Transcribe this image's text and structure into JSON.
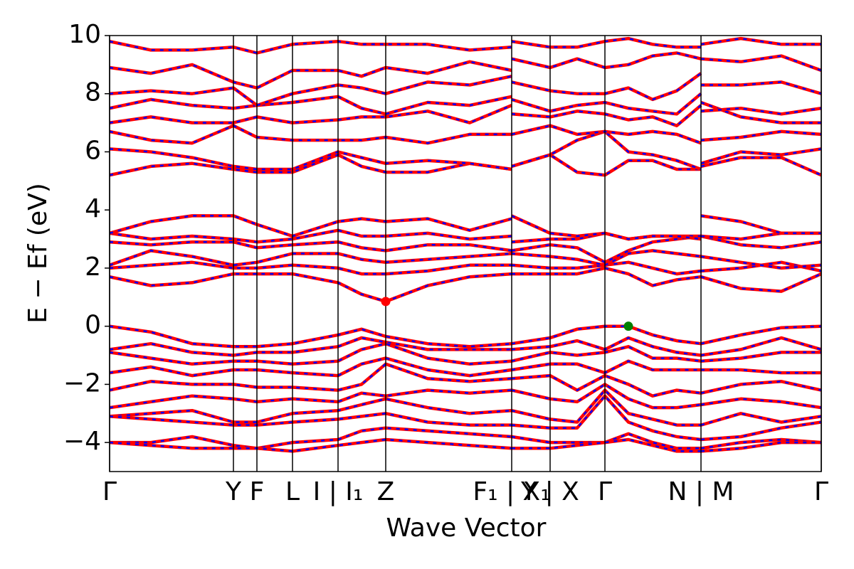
{
  "chart_data": {
    "type": "line",
    "xlabel": "Wave Vector",
    "ylabel": "E − Ef (eV)",
    "xlim": [
      0,
      1000
    ],
    "ylim": [
      -5,
      10
    ],
    "yticks": [
      {
        "value": -4,
        "label": "−4"
      },
      {
        "value": -2,
        "label": "−2"
      },
      0,
      2,
      4,
      6,
      8,
      10
    ],
    "xticks": [
      {
        "value": 0,
        "label": "Γ"
      },
      {
        "value": 174,
        "label": "Y"
      },
      {
        "value": 207,
        "label": "F"
      },
      {
        "value": 257,
        "label": "L"
      },
      {
        "value": 321,
        "label": "I | I₁"
      },
      {
        "value": 388,
        "label": "Z"
      },
      {
        "value": 565,
        "label": "F₁ | X₁"
      },
      {
        "value": 619,
        "label": "Y | X"
      },
      {
        "value": 696,
        "label": "Γ"
      },
      {
        "value": 831,
        "label": "N | M"
      },
      {
        "value": 1000,
        "label": "Γ"
      }
    ],
    "line_color": "#ff0000",
    "dash_color": "#0000ff",
    "tick_line_color": "#000000",
    "x": [
      0,
      58,
      116,
      174,
      207,
      257,
      321,
      354,
      388,
      447,
      506,
      565,
      565,
      565,
      619,
      657,
      696,
      729,
      763,
      797,
      831,
      831,
      831,
      887,
      944,
      1000
    ],
    "series": [
      {
        "values": [
          0,
          -0.2,
          -0.6,
          -0.7,
          -0.7,
          -0.6,
          -0.3,
          -0.1,
          -0.35,
          -0.6,
          -0.7,
          -0.6,
          null,
          -0.6,
          -0.4,
          -0.1,
          0,
          0,
          -0.3,
          -0.5,
          -0.6,
          null,
          -0.6,
          -0.3,
          -0.05,
          0
        ]
      },
      {
        "values": [
          -0.8,
          -0.6,
          -0.9,
          -1.0,
          -0.9,
          -0.9,
          -0.7,
          -0.4,
          -0.55,
          -0.8,
          -0.8,
          -0.8,
          null,
          -0.8,
          -0.7,
          -0.5,
          -0.8,
          -0.4,
          -0.7,
          -0.9,
          -1.0,
          null,
          -1.0,
          -0.8,
          -0.4,
          -0.8
        ]
      },
      {
        "values": [
          -0.9,
          -1.1,
          -1.3,
          -1.2,
          -1.2,
          -1.3,
          -1.2,
          -0.8,
          -0.6,
          -1.1,
          -1.3,
          -1.2,
          null,
          -1.2,
          -0.9,
          -1.0,
          -0.9,
          -0.7,
          -1.1,
          -1.1,
          -1.2,
          null,
          -1.2,
          -1.1,
          -0.9,
          -0.9
        ]
      },
      {
        "values": [
          -1.6,
          -1.4,
          -1.7,
          -1.5,
          -1.5,
          -1.6,
          -1.7,
          -1.3,
          -1.1,
          -1.5,
          -1.7,
          -1.5,
          null,
          -1.5,
          -1.3,
          -1.3,
          -1.6,
          -1.2,
          -1.5,
          -1.5,
          -1.5,
          null,
          -1.5,
          -1.5,
          -1.6,
          -1.6
        ]
      },
      {
        "values": [
          -2.2,
          -1.9,
          -2.0,
          -2.0,
          -2.1,
          -2.1,
          -2.2,
          -2.0,
          -1.3,
          -1.8,
          -1.9,
          -1.8,
          null,
          -1.8,
          -1.7,
          -2.2,
          -1.7,
          -2.0,
          -2.4,
          -2.2,
          -2.3,
          null,
          -2.3,
          -2.0,
          -1.9,
          -2.2
        ]
      },
      {
        "values": [
          -2.8,
          -2.6,
          -2.4,
          -2.5,
          -2.6,
          -2.5,
          -2.6,
          -2.3,
          -2.4,
          -2.2,
          -2.3,
          -2.2,
          null,
          -2.2,
          -2.5,
          -2.6,
          -2.0,
          -2.5,
          -2.8,
          -2.8,
          -2.7,
          null,
          -2.7,
          -2.5,
          -2.6,
          -2.8
        ]
      },
      {
        "values": [
          -3.1,
          -3.0,
          -2.9,
          -3.3,
          -3.3,
          -3.0,
          -2.9,
          -2.7,
          -2.5,
          -2.8,
          -3.0,
          -2.9,
          null,
          -2.9,
          -3.2,
          -3.3,
          -2.2,
          -3.0,
          -3.2,
          -3.4,
          -3.4,
          null,
          -3.4,
          -3.0,
          -3.3,
          -3.1
        ]
      },
      {
        "values": [
          -3.1,
          -3.2,
          -3.3,
          -3.4,
          -3.4,
          -3.3,
          -3.2,
          -3.1,
          -3.0,
          -3.3,
          -3.4,
          -3.4,
          null,
          -3.4,
          -3.5,
          -3.5,
          -2.4,
          -3.3,
          -3.6,
          -3.8,
          -3.9,
          null,
          -3.9,
          -3.8,
          -3.5,
          -3.3
        ]
      },
      {
        "values": [
          -4.0,
          -4.0,
          -3.8,
          -4.1,
          -4.2,
          -4.0,
          -3.9,
          -3.6,
          -3.5,
          -3.6,
          -3.7,
          -3.8,
          null,
          -3.8,
          -4.0,
          -4.0,
          -4.0,
          -3.7,
          -4.0,
          -4.2,
          -4.2,
          null,
          -4.2,
          -4.0,
          -3.9,
          -4.0
        ]
      },
      {
        "values": [
          -4.0,
          -4.1,
          -4.2,
          -4.2,
          -4.2,
          -4.3,
          -4.1,
          -4.0,
          -3.9,
          -4.0,
          -4.1,
          -4.2,
          null,
          -4.2,
          -4.2,
          -4.1,
          -4.0,
          -3.9,
          -4.1,
          -4.3,
          -4.3,
          null,
          -4.3,
          -4.2,
          -4.0,
          -4.0
        ]
      },
      {
        "values": [
          1.7,
          1.4,
          1.5,
          1.8,
          1.8,
          1.8,
          1.5,
          1.1,
          0.85,
          1.4,
          1.7,
          1.8,
          null,
          1.8,
          1.8,
          1.8,
          2.0,
          1.8,
          1.4,
          1.6,
          1.7,
          null,
          1.7,
          1.3,
          1.2,
          1.8
        ]
      },
      {
        "values": [
          2.0,
          2.1,
          2.2,
          2.0,
          2.0,
          2.1,
          2.0,
          1.8,
          1.8,
          1.9,
          2.1,
          2.1,
          null,
          2.1,
          2.0,
          2.0,
          2.1,
          2.2,
          2.0,
          1.8,
          1.9,
          null,
          1.9,
          2.0,
          2.2,
          1.9
        ]
      },
      {
        "values": [
          2.1,
          2.6,
          2.4,
          2.1,
          2.2,
          2.5,
          2.5,
          2.3,
          2.2,
          2.3,
          2.4,
          2.5,
          null,
          2.5,
          2.4,
          2.3,
          2.1,
          2.5,
          2.6,
          2.5,
          2.4,
          null,
          2.4,
          2.2,
          2.0,
          2.1
        ]
      },
      {
        "values": [
          2.9,
          2.8,
          2.9,
          2.9,
          2.7,
          2.8,
          2.9,
          2.7,
          2.6,
          2.8,
          2.8,
          2.6,
          null,
          2.6,
          2.8,
          2.7,
          2.2,
          2.6,
          2.9,
          3.0,
          3.1,
          null,
          3.1,
          2.8,
          2.7,
          2.9
        ]
      },
      {
        "values": [
          3.2,
          3.0,
          3.1,
          3.0,
          2.9,
          3.0,
          3.3,
          3.1,
          3.1,
          3.2,
          3.0,
          3.1,
          null,
          2.9,
          3.0,
          3.0,
          3.2,
          3.0,
          3.1,
          3.1,
          3.1,
          null,
          3.1,
          3.0,
          3.2,
          3.2
        ]
      },
      {
        "values": [
          3.2,
          3.6,
          3.8,
          3.8,
          3.5,
          3.1,
          3.6,
          3.7,
          3.6,
          3.7,
          3.3,
          3.7,
          null,
          3.8,
          3.2,
          3.1,
          3.2,
          3.0,
          3.1,
          3.1,
          3.0,
          null,
          3.8,
          3.6,
          3.2,
          3.2
        ]
      },
      {
        "values": [
          5.2,
          5.5,
          5.6,
          5.4,
          5.3,
          5.3,
          5.9,
          5.5,
          5.3,
          5.3,
          5.6,
          5.4,
          null,
          5.5,
          5.9,
          5.3,
          5.2,
          5.7,
          5.7,
          5.4,
          5.4,
          null,
          5.5,
          5.8,
          5.8,
          5.2
        ]
      },
      {
        "values": [
          6.1,
          6.0,
          5.8,
          5.5,
          5.4,
          5.4,
          6.0,
          5.8,
          5.6,
          5.7,
          5.6,
          5.4,
          null,
          5.5,
          5.9,
          6.4,
          6.7,
          6.0,
          5.9,
          5.7,
          5.4,
          null,
          5.6,
          6.0,
          5.9,
          6.1
        ]
      },
      {
        "values": [
          6.7,
          6.4,
          6.3,
          6.9,
          6.5,
          6.4,
          6.4,
          6.4,
          6.5,
          6.3,
          6.6,
          6.6,
          null,
          6.6,
          6.9,
          6.6,
          6.7,
          6.6,
          6.7,
          6.6,
          6.3,
          null,
          6.4,
          6.5,
          6.7,
          6.6
        ]
      },
      {
        "values": [
          7.0,
          7.2,
          7.0,
          7.0,
          7.2,
          7.0,
          7.1,
          7.2,
          7.2,
          7.4,
          7.0,
          7.6,
          null,
          7.3,
          7.2,
          7.4,
          7.3,
          7.1,
          7.2,
          6.9,
          7.6,
          null,
          7.7,
          7.2,
          7.0,
          7.0
        ]
      },
      {
        "values": [
          7.5,
          7.8,
          7.6,
          7.5,
          7.6,
          7.7,
          7.9,
          7.5,
          7.3,
          7.7,
          7.6,
          7.9,
          null,
          7.8,
          7.4,
          7.6,
          7.7,
          7.5,
          7.4,
          7.3,
          8.0,
          null,
          7.4,
          7.5,
          7.3,
          7.5
        ]
      },
      {
        "values": [
          8.0,
          8.1,
          8.0,
          8.2,
          7.6,
          8.0,
          8.3,
          8.2,
          8.0,
          8.4,
          8.3,
          8.6,
          null,
          8.4,
          8.1,
          8.0,
          8.0,
          8.2,
          7.8,
          8.1,
          8.7,
          null,
          8.3,
          8.3,
          8.4,
          8.0
        ]
      },
      {
        "values": [
          8.9,
          8.7,
          9.0,
          8.4,
          8.2,
          8.8,
          8.8,
          8.6,
          8.9,
          8.7,
          9.1,
          8.8,
          null,
          9.2,
          8.9,
          9.2,
          8.9,
          9.0,
          9.3,
          9.4,
          9.2,
          null,
          9.2,
          9.1,
          9.3,
          8.8
        ]
      },
      {
        "values": [
          9.8,
          9.5,
          9.5,
          9.6,
          9.4,
          9.7,
          9.8,
          9.7,
          9.7,
          9.7,
          9.5,
          9.6,
          null,
          9.8,
          9.6,
          9.6,
          9.8,
          9.9,
          9.7,
          9.6,
          9.6,
          null,
          9.7,
          9.9,
          9.7,
          9.7
        ]
      }
    ],
    "points": [
      {
        "x": 388,
        "y": 0.85,
        "color": "#ff0000"
      },
      {
        "x": 729,
        "y": 0,
        "color": "#008000"
      }
    ]
  }
}
